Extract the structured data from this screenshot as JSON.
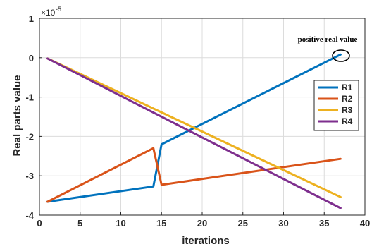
{
  "chart_data": {
    "type": "line",
    "xlabel": "iterations",
    "ylabel": "Real parts value",
    "xlim": [
      0,
      40
    ],
    "ylim": [
      -4,
      1
    ],
    "xticks": [
      "0",
      "5",
      "10",
      "15",
      "20",
      "25",
      "30",
      "35",
      "40"
    ],
    "yticks": [
      "1",
      "0",
      "-1",
      "-2",
      "-3",
      "-4"
    ],
    "y_exponent": "×10",
    "y_exponent_power": "-5",
    "grid": true,
    "legend_position": "right",
    "annotation": "positive real value",
    "series": [
      {
        "name": "R1",
        "color": "#0072BD",
        "x": [
          1,
          14,
          15,
          37
        ],
        "y": [
          -3.66,
          -3.27,
          -2.2,
          0.08
        ]
      },
      {
        "name": "R2",
        "color": "#D95319",
        "x": [
          1,
          14,
          15,
          37
        ],
        "y": [
          -3.66,
          -2.3,
          -3.23,
          -2.57
        ]
      },
      {
        "name": "R3",
        "color": "#EDB120",
        "x": [
          1,
          37
        ],
        "y": [
          -0.02,
          -3.54
        ]
      },
      {
        "name": "R4",
        "color": "#7E2F8E",
        "x": [
          1,
          37
        ],
        "y": [
          -0.02,
          -3.82
        ]
      }
    ]
  }
}
